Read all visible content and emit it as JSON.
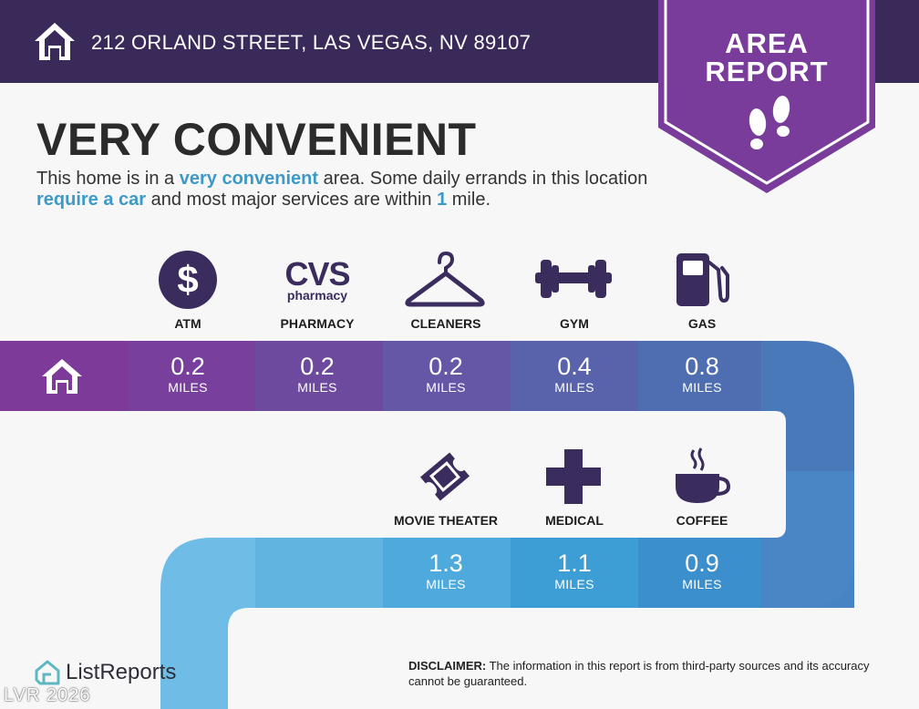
{
  "header": {
    "address": "212 ORLAND STREET, LAS VEGAS, NV 89107"
  },
  "badge": {
    "line1": "AREA",
    "line2": "REPORT"
  },
  "title": "VERY CONVENIENT",
  "description": {
    "p1": "This home is in a ",
    "h1": "very convenient",
    "p2": " area. Some daily errands in this location ",
    "h2": "require a car",
    "p3": " and most major services are within ",
    "h3": "1",
    "p4": " mile."
  },
  "cvs_logo": {
    "line1": "CVS",
    "line2": "pharmacy"
  },
  "services_row1": [
    {
      "label": "ATM",
      "distance": "0.2",
      "unit": "MILES",
      "icon": "dollar-icon"
    },
    {
      "label": "PHARMACY",
      "distance": "0.2",
      "unit": "MILES",
      "icon": "cvs-pharmacy-logo"
    },
    {
      "label": "CLEANERS",
      "distance": "0.2",
      "unit": "MILES",
      "icon": "hanger-icon"
    },
    {
      "label": "GYM",
      "distance": "0.4",
      "unit": "MILES",
      "icon": "dumbbell-icon"
    },
    {
      "label": "GAS",
      "distance": "0.8",
      "unit": "MILES",
      "icon": "gas-pump-icon"
    }
  ],
  "services_row2": [
    {
      "label": "MOVIE THEATER",
      "distance": "1.3",
      "unit": "MILES",
      "icon": "ticket-icon"
    },
    {
      "label": "MEDICAL",
      "distance": "1.1",
      "unit": "MILES",
      "icon": "medical-cross-icon"
    },
    {
      "label": "COFFEE",
      "distance": "0.9",
      "unit": "MILES",
      "icon": "coffee-cup-icon"
    }
  ],
  "footer": {
    "logo_text": "ListReports",
    "disclaimer_label": "DISCLAIMER:",
    "disclaimer_text": " The information in this report is from third-party sources and its accuracy cannot be guaranteed."
  },
  "watermark": "LVR 2026",
  "colors": {
    "header": "#3a2a5a",
    "badge": "#7a3c9a",
    "icon": "#3b2c5e",
    "highlight": "#3d9ac7"
  }
}
